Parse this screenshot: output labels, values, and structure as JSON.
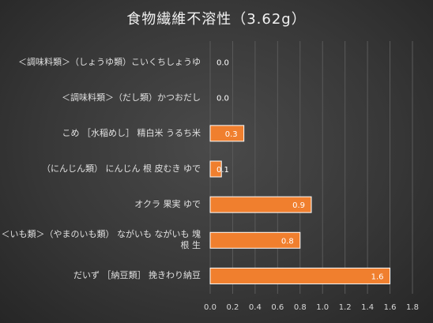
{
  "chart_data": {
    "type": "bar",
    "orientation": "horizontal",
    "title": "食物繊維不溶性（3.62g）",
    "categories": [
      "＜調味料類＞（しょうゆ類）こいくちしょうゆ",
      "＜調味料類＞（だし類）かつおだし",
      "こめ ［水稲めし］ 精白米 うるち米",
      "（にんじん類） にんじん 根 皮むき ゆで",
      "オクラ 果実 ゆで",
      "＜いも類＞（やまのいも類） ながいも ながいも 塊根 生",
      "だいず ［納豆類］ 挽きわり納豆"
    ],
    "values": [
      0.0,
      0.0,
      0.3,
      0.1,
      0.9,
      0.8,
      1.6
    ],
    "data_labels": [
      "0.0",
      "0.0",
      "0.3",
      "0.1",
      "0.9",
      "0.8",
      "1.6"
    ],
    "xlim": [
      0,
      1.8
    ],
    "x_ticks": [
      "0.0",
      "0.2",
      "0.4",
      "0.6",
      "0.8",
      "1.0",
      "1.2",
      "1.4",
      "1.6",
      "1.8"
    ],
    "xlabel": "",
    "ylabel": "",
    "grid": true,
    "legend": "none",
    "colors": {
      "bar": "#f07f2e",
      "bar_border": "#ffffff",
      "grid": "#5a5a5a",
      "text": "#d9d9d9"
    }
  }
}
